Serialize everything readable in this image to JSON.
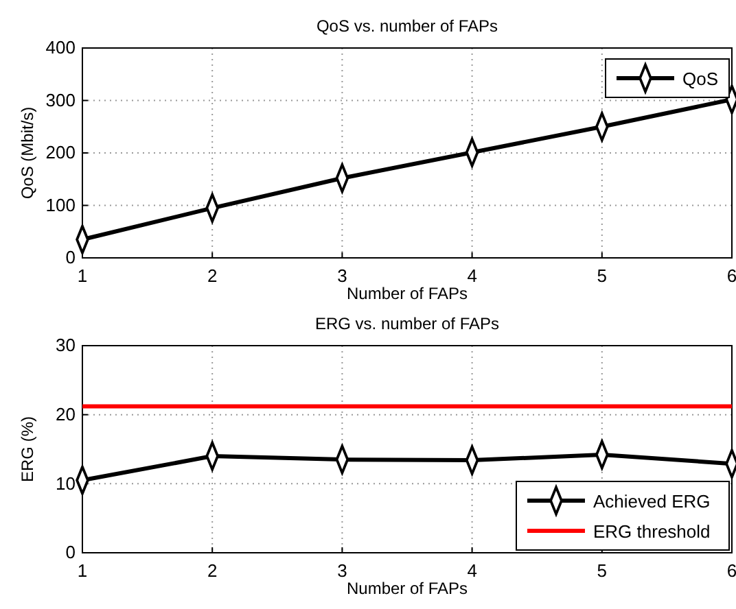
{
  "chart_data": [
    {
      "type": "line",
      "title": "QoS vs. number of FAPs",
      "xlabel": "Number of FAPs",
      "ylabel": "QoS (Mbit/s)",
      "x": [
        1,
        2,
        3,
        4,
        5,
        6
      ],
      "xlim": [
        1,
        6
      ],
      "xticks": [
        1,
        2,
        3,
        4,
        5,
        6
      ],
      "ylim": [
        0,
        400
      ],
      "yticks": [
        0,
        100,
        200,
        300,
        400
      ],
      "grid": true,
      "legend": "top right",
      "series": [
        {
          "name": "QoS",
          "color": "#000000",
          "marker": "diamond",
          "values": [
            35,
            95,
            152,
            201,
            250,
            302
          ]
        }
      ]
    },
    {
      "type": "line",
      "title": "ERG vs. number of FAPs",
      "xlabel": "Number of FAPs",
      "ylabel": "ERG (%)",
      "x": [
        1,
        2,
        3,
        4,
        5,
        6
      ],
      "xlim": [
        1,
        6
      ],
      "xticks": [
        1,
        2,
        3,
        4,
        5,
        6
      ],
      "ylim": [
        0,
        30
      ],
      "yticks": [
        0,
        10,
        20,
        30
      ],
      "grid": true,
      "legend": "bottom right",
      "series": [
        {
          "name": "Achieved ERG",
          "color": "#000000",
          "marker": "diamond",
          "values": [
            10.5,
            14,
            13.5,
            13.4,
            14.2,
            12.9
          ]
        },
        {
          "name": "ERG threshold",
          "color": "#ff0000",
          "marker": "none",
          "values": [
            21.2,
            21.2,
            21.2,
            21.2,
            21.2,
            21.2
          ]
        }
      ]
    }
  ]
}
